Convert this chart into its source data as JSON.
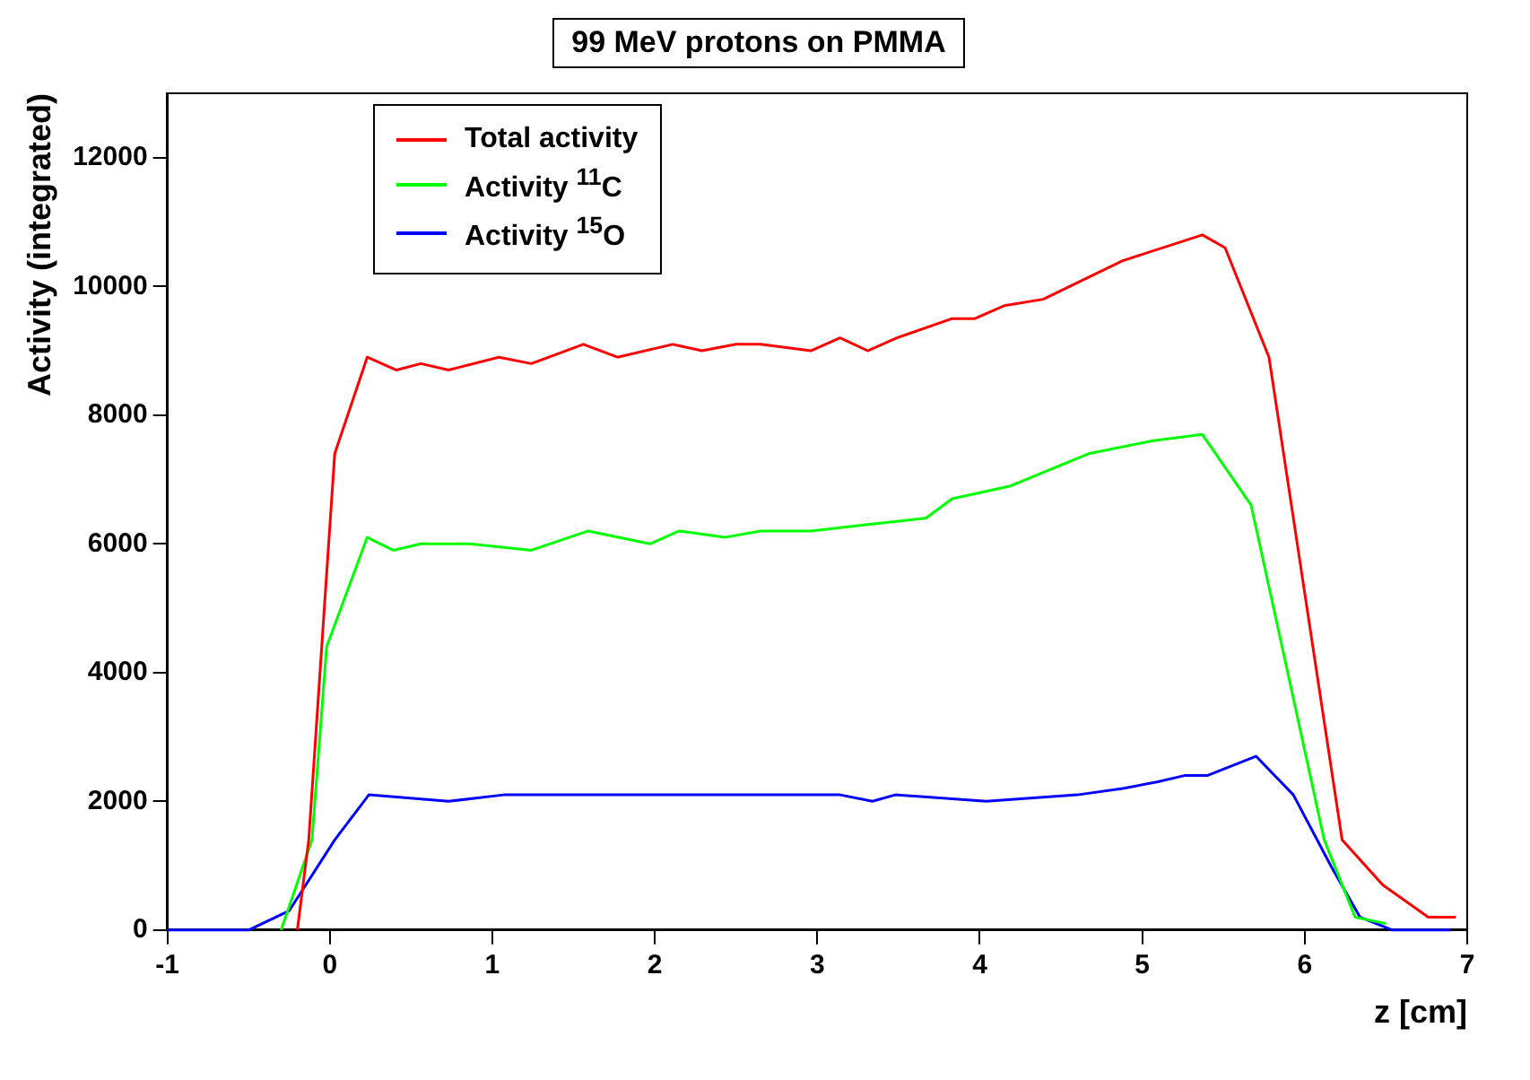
{
  "chart_data": {
    "type": "line",
    "title": "99 MeV protons on PMMA",
    "xlabel": "z [cm]",
    "ylabel": "Activity (integrated)",
    "xlim": [
      -1,
      7
    ],
    "xticks": [
      -1,
      0,
      1,
      2,
      3,
      4,
      5,
      6,
      7
    ],
    "ylim": [
      0,
      13000
    ],
    "yticks": [
      0,
      2000,
      4000,
      6000,
      8000,
      10000,
      12000
    ],
    "grid": false,
    "legend": "top left",
    "marker": "none",
    "line_style": "solid",
    "series": [
      {
        "name": "Total activity",
        "color": "#ff0000",
        "x": [
          -0.2,
          -0.13,
          0.03,
          0.23,
          0.41,
          0.56,
          0.73,
          1.04,
          1.24,
          1.56,
          1.77,
          2.11,
          2.29,
          2.5,
          2.65,
          2.96,
          3.14,
          3.31,
          3.49,
          3.83,
          3.97,
          4.15,
          4.39,
          4.88,
          5.37,
          5.51,
          5.78,
          6.05,
          6.23,
          6.48,
          6.76,
          6.93
        ],
        "values": [
          0,
          1400,
          7400,
          8900,
          8700,
          8800,
          8700,
          8900,
          8800,
          9100,
          8900,
          9100,
          9000,
          9100,
          9100,
          9000,
          9200,
          9000,
          9200,
          9500,
          9500,
          9700,
          9800,
          10400,
          10800,
          10600,
          8900,
          4400,
          1400,
          700,
          200,
          200
        ]
      },
      {
        "name": "Activity $^{11}$C",
        "color": "#00ff00",
        "x": [
          -0.3,
          -0.11,
          -0.02,
          0.23,
          0.39,
          0.56,
          0.86,
          1.24,
          1.59,
          1.97,
          2.15,
          2.43,
          2.65,
          2.96,
          3.31,
          3.67,
          3.83,
          4.19,
          4.67,
          5.06,
          5.37,
          5.67,
          5.93,
          6.12,
          6.31,
          6.5
        ],
        "values": [
          0,
          1400,
          4400,
          6100,
          5900,
          6000,
          6000,
          5900,
          6200,
          6000,
          6200,
          6100,
          6200,
          6200,
          6300,
          6400,
          6700,
          6900,
          7400,
          7600,
          7700,
          6600,
          3600,
          1400,
          200,
          100
        ]
      },
      {
        "name": "Activity $^{15}$O",
        "color": "#0000ff",
        "x": [
          -1,
          -0.5,
          -0.25,
          0.03,
          0.24,
          0.73,
          1.07,
          1.66,
          2.36,
          2.65,
          2.96,
          3.14,
          3.34,
          3.48,
          4.04,
          4.6,
          4.88,
          5.09,
          5.26,
          5.4,
          5.7,
          5.93,
          6.16,
          6.34,
          6.54,
          6.9
        ],
        "values": [
          0,
          0,
          300,
          1400,
          2100,
          2000,
          2100,
          2100,
          2100,
          2100,
          2100,
          2100,
          2000,
          2100,
          2000,
          2100,
          2200,
          2300,
          2400,
          2400,
          2700,
          2100,
          1000,
          200,
          0,
          0
        ]
      }
    ]
  }
}
